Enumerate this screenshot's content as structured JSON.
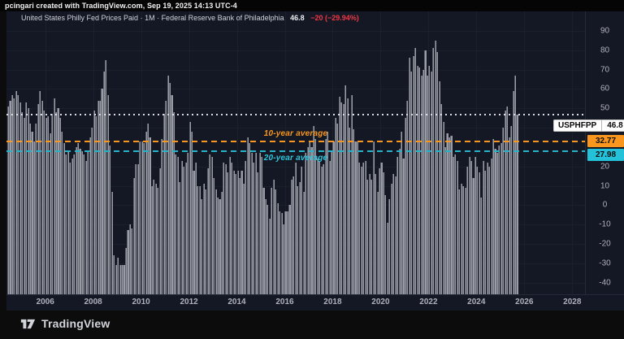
{
  "top_bar": {
    "attribution": "pcingari created with TradingView.com, Sep 19, 2025 14:13 UTC-4"
  },
  "legend": {
    "title": "United States Philly Fed Prices Paid · 1M · Federal Reserve Bank of Philadelphia",
    "value": "46.8",
    "change": "−20 (−29.94%)"
  },
  "price_label": {
    "symbol": "USPHFPP",
    "value": "46.8"
  },
  "avg_lines": [
    {
      "name": "10-year average",
      "value": 32.77,
      "label": "32.77",
      "color": "#f8961d"
    },
    {
      "name": "20-year average",
      "value": 27.98,
      "label": "27.98",
      "color": "#24c2d8"
    }
  ],
  "footer": {
    "brand": "TradingView"
  },
  "colors": {
    "pane_bg": "#141824",
    "bar": "#9a9da6",
    "grid": "#1b202d",
    "negative_change": "#f23645",
    "current_line": "#d9dce3",
    "ten_year": "#f8961d",
    "twenty_year": "#24c2d8"
  },
  "chart_data": {
    "type": "bar",
    "title": "United States Philly Fed Prices Paid",
    "xlabel": "",
    "ylabel": "",
    "frequency": "monthly",
    "x_start": "2004-06",
    "x_end": "2025-09",
    "ylim": [
      -46,
      100
    ],
    "xlim_years": [
      2004.4167,
      2028.5
    ],
    "y_ticks": [
      90,
      80,
      70,
      60,
      50,
      40,
      20,
      10,
      0,
      -10,
      -20,
      -30,
      -40
    ],
    "x_ticks": [
      2006,
      2008,
      2010,
      2012,
      2014,
      2016,
      2018,
      2020,
      2022,
      2024,
      2026,
      2028
    ],
    "grid": true,
    "legend_position": "top-left",
    "current_value": 46.8,
    "previous_value": 66.8,
    "annotations": [
      "10-year average = 32.77",
      "20-year average = 27.98",
      "last value line = 46.8"
    ],
    "values": [
      51,
      54,
      57,
      55,
      59,
      57,
      53,
      48,
      45,
      53,
      50,
      42,
      38,
      33,
      42,
      52,
      59,
      54,
      49,
      45,
      46,
      37,
      47,
      55,
      48,
      50,
      45,
      38,
      32,
      26,
      28,
      22,
      24,
      26,
      30,
      32,
      29,
      28,
      26,
      23,
      28,
      35,
      40,
      49,
      46,
      54,
      54,
      60,
      69,
      75,
      57,
      31,
      7,
      -26,
      -31,
      -27,
      -31,
      -31,
      -31,
      -22,
      -13,
      -10,
      -12,
      14,
      21,
      21,
      33,
      33,
      32,
      38,
      42,
      35,
      10,
      13,
      11,
      9,
      19,
      34,
      47,
      54,
      67,
      63,
      57,
      48,
      26,
      25,
      12,
      23,
      20,
      22,
      27,
      43,
      38,
      18,
      22,
      10,
      10,
      3,
      11,
      8,
      19,
      26,
      25,
      14,
      8,
      4,
      3,
      7,
      22,
      21,
      17,
      25,
      22,
      18,
      16,
      18,
      14,
      18,
      11,
      23,
      35,
      32,
      27,
      22,
      27,
      17,
      27,
      25,
      9,
      3,
      0,
      -7,
      9,
      13,
      8,
      1,
      -3,
      -4,
      -10,
      -3,
      -3,
      0,
      13,
      15,
      22,
      10,
      12,
      20,
      7,
      27,
      30,
      33,
      30,
      41,
      34,
      24,
      23,
      20,
      21,
      34,
      38,
      23,
      28,
      33,
      45,
      42,
      56,
      53,
      52,
      62,
      55,
      40,
      57,
      39,
      33,
      33,
      22,
      20,
      22,
      23,
      13,
      16,
      13,
      33,
      16,
      7,
      19,
      22,
      17,
      5,
      -9,
      3,
      11,
      16,
      15,
      25,
      29,
      38,
      24,
      45,
      54,
      76,
      69,
      77,
      81,
      72,
      71,
      67,
      70,
      80,
      67,
      72,
      69,
      81,
      85,
      79,
      64,
      52,
      43,
      30,
      37,
      35,
      36,
      25,
      26,
      23,
      8,
      11,
      10,
      9,
      20,
      25,
      23,
      14,
      25,
      20,
      17,
      4,
      23,
      18,
      22,
      20,
      24,
      34,
      29,
      27,
      31,
      32,
      40,
      49,
      51,
      35,
      41,
      59,
      66.8,
      46.8
    ]
  }
}
